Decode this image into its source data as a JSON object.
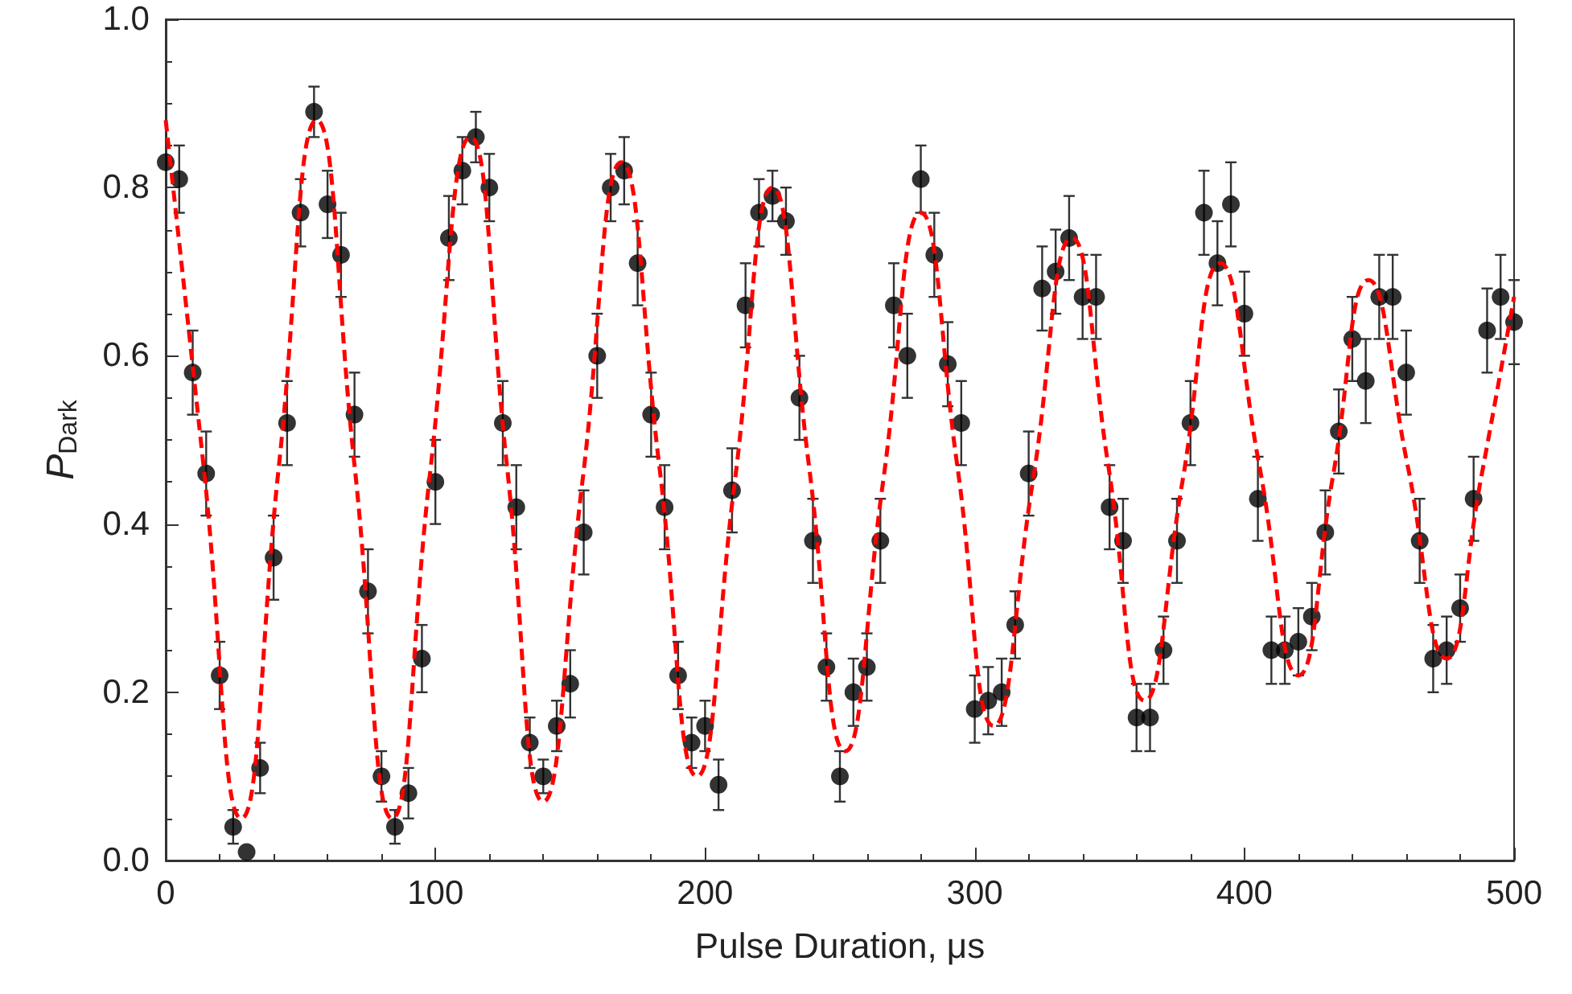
{
  "chart_data": {
    "type": "scatter",
    "xlabel": "Pulse Duration, μs",
    "ylabel": "P$_{Dark}$",
    "xlim": [
      0,
      500
    ],
    "xticks": [
      0,
      100,
      200,
      300,
      400,
      500
    ],
    "ylim": [
      0,
      1
    ],
    "yticks": [
      {
        "value": 0,
        "label": "0.0"
      },
      {
        "value": 0.2,
        "label": "0.2"
      },
      {
        "value": 0.4,
        "label": "0.4"
      },
      {
        "value": 0.6,
        "label": "0.6"
      },
      {
        "value": 0.8,
        "label": "0.8"
      },
      {
        "value": 1,
        "label": "1.0"
      }
    ],
    "grid": false,
    "series": [
      {
        "color": "#000000",
        "marker": "circle",
        "x": [
          0,
          5,
          10,
          15,
          20,
          25,
          30,
          35,
          40,
          45,
          50,
          55,
          60,
          65,
          70,
          75,
          80,
          85,
          90,
          95,
          100,
          105,
          110,
          115,
          120,
          125,
          130,
          135,
          140,
          145,
          150,
          155,
          160,
          165,
          170,
          175,
          180,
          185,
          190,
          195,
          200,
          205,
          210,
          215,
          220,
          225,
          230,
          235,
          240,
          245,
          250,
          255,
          260,
          265,
          270,
          275,
          280,
          285,
          290,
          295,
          300,
          305,
          310,
          315,
          320,
          325,
          330,
          335,
          340,
          345,
          350,
          355,
          360,
          365,
          370,
          375,
          380,
          385,
          390,
          395,
          400,
          405,
          410,
          415,
          420,
          425,
          430,
          435,
          440,
          445,
          450,
          455,
          460,
          465,
          470,
          475,
          480,
          485,
          490,
          495,
          500
        ],
        "values": [
          0.83,
          0.81,
          0.58,
          0.46,
          0.22,
          0.04,
          0.01,
          0.11,
          0.36,
          0.52,
          0.77,
          0.89,
          0.78,
          0.72,
          0.53,
          0.32,
          0.1,
          0.04,
          0.08,
          0.24,
          0.45,
          0.74,
          0.82,
          0.86,
          0.8,
          0.52,
          0.42,
          0.14,
          0.1,
          0.16,
          0.21,
          0.39,
          0.6,
          0.8,
          0.82,
          0.71,
          0.53,
          0.42,
          0.22,
          0.14,
          0.16,
          0.09,
          0.44,
          0.66,
          0.77,
          0.79,
          0.76,
          0.55,
          0.38,
          0.23,
          0.1,
          0.2,
          0.23,
          0.38,
          0.66,
          0.6,
          0.81,
          0.72,
          0.59,
          0.52,
          0.18,
          0.19,
          0.2,
          0.28,
          0.46,
          0.68,
          0.7,
          0.74,
          0.67,
          0.67,
          0.42,
          0.38,
          0.17,
          0.17,
          0.25,
          0.38,
          0.52,
          0.77,
          0.71,
          0.78,
          0.65,
          0.43,
          0.25,
          0.25,
          0.26,
          0.29,
          0.39,
          0.51,
          0.62,
          0.57,
          0.67,
          0.67,
          0.58,
          0.38,
          0.24,
          0.25,
          0.3,
          0.43,
          0.63,
          0.67,
          0.64
        ],
        "errors": [
          null,
          0.04,
          0.05,
          0.05,
          0.04,
          0.02,
          null,
          0.03,
          0.05,
          0.05,
          0.04,
          0.03,
          0.04,
          0.05,
          0.05,
          0.05,
          0.03,
          0.02,
          0.03,
          0.04,
          0.05,
          0.05,
          0.04,
          0.03,
          0.04,
          0.05,
          0.05,
          0.03,
          0.02,
          0.03,
          0.04,
          0.05,
          0.05,
          0.04,
          0.04,
          0.05,
          0.05,
          0.05,
          0.04,
          0.03,
          0.03,
          0.03,
          0.05,
          0.05,
          0.04,
          0.03,
          0.04,
          0.05,
          0.05,
          0.04,
          0.03,
          0.04,
          0.04,
          0.05,
          0.05,
          0.05,
          0.04,
          0.05,
          0.05,
          0.05,
          0.04,
          0.04,
          0.04,
          0.04,
          0.05,
          0.05,
          0.05,
          0.05,
          0.05,
          0.05,
          0.05,
          0.05,
          0.04,
          0.04,
          0.04,
          0.05,
          0.05,
          0.05,
          0.05,
          0.05,
          0.05,
          0.05,
          0.04,
          0.04,
          0.04,
          0.04,
          0.05,
          0.05,
          0.05,
          0.05,
          0.05,
          0.05,
          0.05,
          0.05,
          0.04,
          0.04,
          0.04,
          0.05,
          0.05,
          0.05,
          0.05
        ]
      },
      {
        "type": "line",
        "color": "#ff0000",
        "marker": "none",
        "line_style": "dashed",
        "x": [
          0,
          14,
          28,
          42,
          56,
          70,
          84,
          98,
          113,
          126.5,
          140,
          154.5,
          169,
          183,
          197,
          211,
          225,
          238.5,
          252,
          266,
          280,
          293.5,
          307,
          321.5,
          336,
          349.5,
          363,
          377,
          391,
          405.5,
          420,
          433,
          446,
          460.5,
          475,
          487.5,
          500
        ],
        "values": [
          0.88,
          0.47,
          0.05,
          0.47,
          0.88,
          0.47,
          0.05,
          0.46,
          0.86,
          0.47,
          0.07,
          0.45,
          0.83,
          0.47,
          0.1,
          0.45,
          0.8,
          0.47,
          0.13,
          0.45,
          0.77,
          0.47,
          0.16,
          0.45,
          0.74,
          0.47,
          0.19,
          0.45,
          0.71,
          0.47,
          0.22,
          0.46,
          0.69,
          0.47,
          0.24,
          0.45,
          0.67
        ]
      }
    ]
  }
}
